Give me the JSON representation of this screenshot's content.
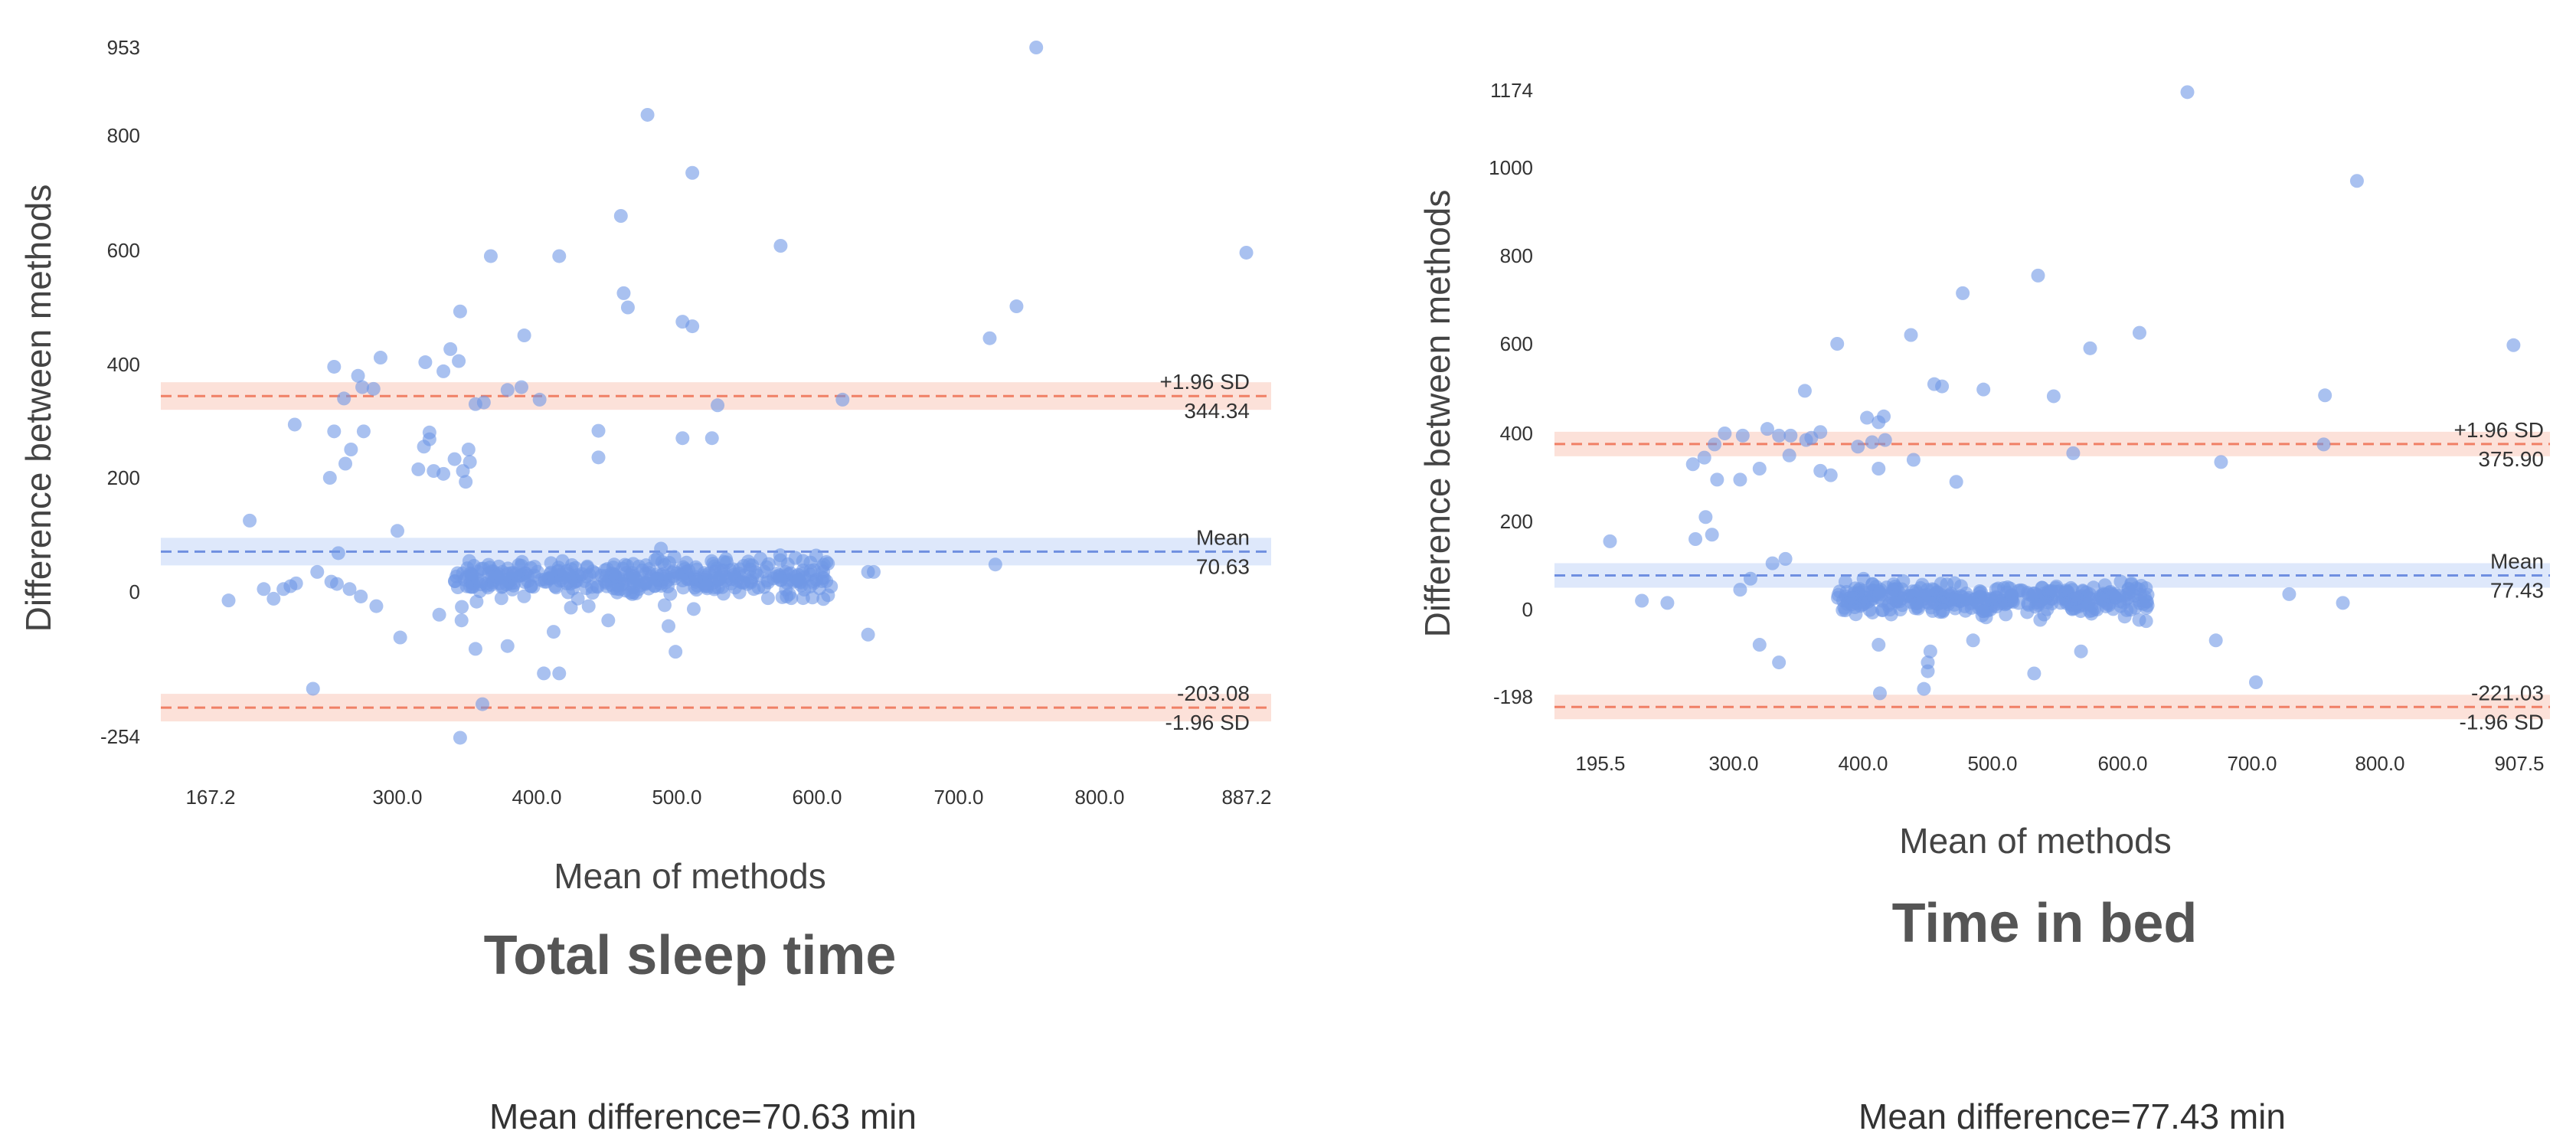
{
  "colors": {
    "point": "#6f98e6",
    "mean_line": "#6f8fe0",
    "mean_band": "#d6e2fa",
    "loa_line": "#f08066",
    "loa_band": "#fbd9cf",
    "text": "#333333",
    "title": "#555555"
  },
  "chart_data": [
    {
      "type": "scatter",
      "title": "Total sleep time",
      "caption": "Mean difference=70.63 min",
      "xlabel": "Mean of methods",
      "ylabel": "Difference between methods",
      "xlim": [
        167.2,
        887.2
      ],
      "ylim": [
        -254,
        953
      ],
      "x_tick_labels": [
        "167.2",
        "300.0",
        "400.0",
        "500.0",
        "600.0",
        "700.0",
        "800.0",
        "887.2"
      ],
      "x_tick_values": [
        167.2,
        300,
        400,
        500,
        600,
        700,
        800,
        887.2
      ],
      "y_tick_labels": [
        "953",
        "800",
        "600",
        "400",
        "200",
        "0",
        "-254"
      ],
      "y_tick_values": [
        953,
        800,
        600,
        400,
        200,
        0,
        -254
      ],
      "mean": 70.63,
      "upper_loa": 344.34,
      "lower_loa": -203.08,
      "mean_label": "Mean",
      "mean_value_label": "70.63",
      "upper_label": "+1.96 SD",
      "upper_value_label": "344.34",
      "lower_label": "-1.96 SD",
      "lower_value_label": "-203.08",
      "grid": false,
      "outlier_points": [
        [
          755,
          953
        ],
        [
          479,
          836
        ],
        [
          511,
          735
        ],
        [
          887,
          596
        ],
        [
          460,
          660
        ],
        [
          574,
          608
        ],
        [
          367,
          590
        ],
        [
          416,
          590
        ],
        [
          741,
          502
        ],
        [
          462,
          525
        ],
        [
          465,
          500
        ],
        [
          504,
          475
        ],
        [
          511,
          467
        ],
        [
          722,
          446
        ],
        [
          345,
          493
        ],
        [
          391,
          451
        ],
        [
          288,
          412
        ],
        [
          255,
          396
        ],
        [
          272,
          380
        ],
        [
          320,
          404
        ],
        [
          338,
          427
        ],
        [
          344,
          406
        ],
        [
          333,
          388
        ],
        [
          389,
          360
        ],
        [
          379,
          355
        ],
        [
          283,
          357
        ],
        [
          275,
          360
        ],
        [
          262,
          340
        ],
        [
          362,
          333
        ],
        [
          356,
          330
        ],
        [
          402,
          338
        ],
        [
          529,
          328
        ],
        [
          618,
          338
        ],
        [
          525,
          270
        ],
        [
          504,
          270
        ],
        [
          444,
          283
        ],
        [
          323,
          280
        ],
        [
          351,
          250
        ],
        [
          341,
          233
        ],
        [
          352,
          228
        ],
        [
          319,
          255
        ],
        [
          323,
          268
        ],
        [
          276,
          282
        ],
        [
          267,
          250
        ],
        [
          263,
          225
        ],
        [
          252,
          200
        ],
        [
          227,
          294
        ],
        [
          444,
          236
        ],
        [
          326,
          212
        ],
        [
          315,
          215
        ],
        [
          333,
          207
        ],
        [
          349,
          193
        ],
        [
          347,
          212
        ],
        [
          255,
          282
        ],
        [
          195,
          125
        ],
        [
          258,
          68
        ],
        [
          243,
          35
        ],
        [
          253,
          18
        ],
        [
          300,
          107
        ],
        [
          257,
          14
        ],
        [
          240,
          -170
        ],
        [
          361,
          -197
        ],
        [
          345,
          -256
        ],
        [
          356,
          -100
        ],
        [
          379,
          -95
        ],
        [
          416,
          -143
        ],
        [
          405,
          -143
        ],
        [
          499,
          -105
        ],
        [
          636,
          -75
        ],
        [
          285,
          -25
        ],
        [
          302,
          -80
        ],
        [
          330,
          -40
        ],
        [
          346,
          -50
        ],
        [
          412,
          -70
        ],
        [
          437,
          -25
        ],
        [
          451,
          -50
        ],
        [
          494,
          -60
        ],
        [
          512,
          -30
        ],
        [
          726,
          48
        ],
        [
          636,
          35
        ],
        [
          640,
          35
        ],
        [
          180,
          -15
        ],
        [
          205,
          5
        ],
        [
          212,
          -12
        ],
        [
          219,
          5
        ],
        [
          224,
          10
        ],
        [
          228,
          15
        ],
        [
          266,
          5
        ],
        [
          274,
          -8
        ]
      ],
      "cluster": {
        "x_range": [
          340,
          610
        ],
        "y_center": 25,
        "y_spread": 55,
        "count": 380
      }
    },
    {
      "type": "scatter",
      "title": "Time in bed",
      "caption": "Mean difference=77.43 min",
      "xlabel": "Mean of methods",
      "ylabel": "Difference between methods",
      "xlim": [
        195.5,
        907.5
      ],
      "ylim": [
        -198,
        1174
      ],
      "x_tick_labels": [
        "195.5",
        "300.0",
        "400.0",
        "500.0",
        "600.0",
        "700.0",
        "800.0",
        "907.5"
      ],
      "x_tick_values": [
        195.5,
        300,
        400,
        500,
        600,
        700,
        800,
        907.5
      ],
      "y_tick_labels": [
        "1174",
        "1000",
        "800",
        "600",
        "400",
        "200",
        "0",
        "-198"
      ],
      "y_tick_values": [
        1174,
        1000,
        800,
        600,
        400,
        200,
        0,
        -198
      ],
      "mean": 77.43,
      "upper_loa": 375.9,
      "lower_loa": -221.03,
      "mean_label": "Mean",
      "mean_value_label": "77.43",
      "upper_label": "+1.96 SD",
      "upper_value_label": "375.90",
      "lower_label": "-1.96 SD",
      "lower_value_label": "-221.03",
      "grid": false,
      "outlier_points": [
        [
          650,
          1170
        ],
        [
          782,
          970
        ],
        [
          903,
          597
        ],
        [
          535,
          755
        ],
        [
          477,
          715
        ],
        [
          461,
          505
        ],
        [
          493,
          498
        ],
        [
          575,
          590
        ],
        [
          613,
          625
        ],
        [
          547,
          483
        ],
        [
          437,
          620
        ],
        [
          380,
          600
        ],
        [
          355,
          495
        ],
        [
          455,
          510
        ],
        [
          757,
          485
        ],
        [
          756,
          375
        ],
        [
          562,
          355
        ],
        [
          268,
          330
        ],
        [
          285,
          375
        ],
        [
          293,
          400
        ],
        [
          277,
          345
        ],
        [
          287,
          295
        ],
        [
          305,
          295
        ],
        [
          307,
          395
        ],
        [
          326,
          410
        ],
        [
          335,
          395
        ],
        [
          344,
          395
        ],
        [
          356,
          385
        ],
        [
          367,
          403
        ],
        [
          360,
          390
        ],
        [
          396,
          370
        ],
        [
          403,
          435
        ],
        [
          412,
          425
        ],
        [
          416,
          438
        ],
        [
          407,
          380
        ],
        [
          417,
          385
        ],
        [
          439,
          340
        ],
        [
          343,
          350
        ],
        [
          320,
          320
        ],
        [
          367,
          315
        ],
        [
          375,
          305
        ],
        [
          412,
          320
        ],
        [
          472,
          290
        ],
        [
          278,
          210
        ],
        [
          283,
          170
        ],
        [
          270,
          160
        ],
        [
          203,
          155
        ],
        [
          228,
          20
        ],
        [
          248,
          15
        ],
        [
          305,
          45
        ],
        [
          320,
          -80
        ],
        [
          335,
          -120
        ],
        [
          413,
          -190
        ],
        [
          447,
          -180
        ],
        [
          450,
          -140
        ],
        [
          450,
          -120
        ],
        [
          452,
          -95
        ],
        [
          412,
          -80
        ],
        [
          485,
          -70
        ],
        [
          532,
          -145
        ],
        [
          568,
          -95
        ],
        [
          672,
          -70
        ],
        [
          703,
          -165
        ],
        [
          729,
          35
        ],
        [
          771,
          15
        ],
        [
          676,
          335
        ],
        [
          313,
          70
        ],
        [
          330,
          105
        ],
        [
          340,
          115
        ]
      ],
      "cluster": {
        "x_range": [
          380,
          620
        ],
        "y_center": 25,
        "y_spread": 55,
        "count": 360
      }
    }
  ]
}
